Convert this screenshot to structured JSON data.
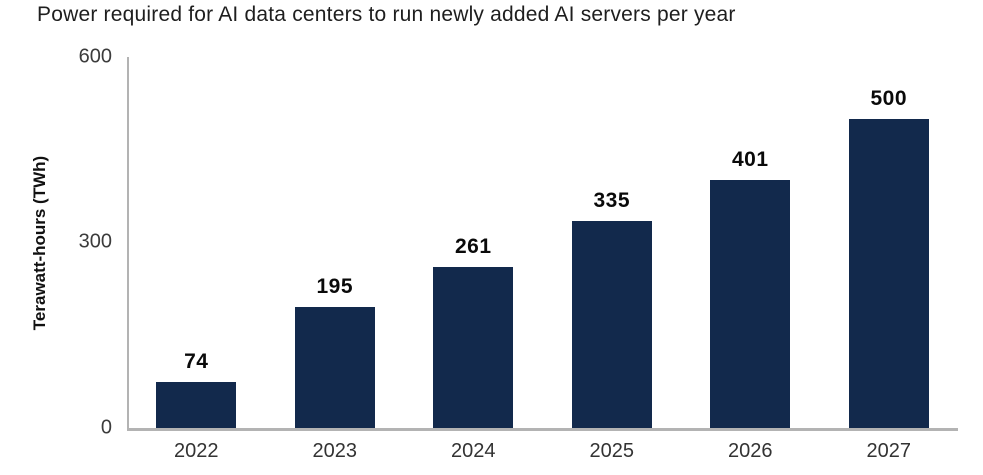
{
  "title": "Power required for AI data centers to run newly added AI servers per year",
  "chart_data": {
    "type": "bar",
    "title": "Power required for AI data centers to run newly added AI servers per year",
    "categories": [
      "2022",
      "2023",
      "2024",
      "2025",
      "2026",
      "2027"
    ],
    "values": [
      74,
      195,
      261,
      335,
      401,
      500
    ],
    "xlabel": "",
    "ylabel": "Terawatt-hours (TWh)",
    "ylim": [
      0,
      600
    ],
    "yticks": [
      0,
      300,
      600
    ],
    "grid": false,
    "legend_position": "none",
    "data_labels": true,
    "colors": {
      "bar": "#12294C",
      "axis_line": "#B3B3B3",
      "value_label": "#0A0A0A",
      "tick_label": "#3C3C3C",
      "title": "#1E1E1E"
    }
  }
}
